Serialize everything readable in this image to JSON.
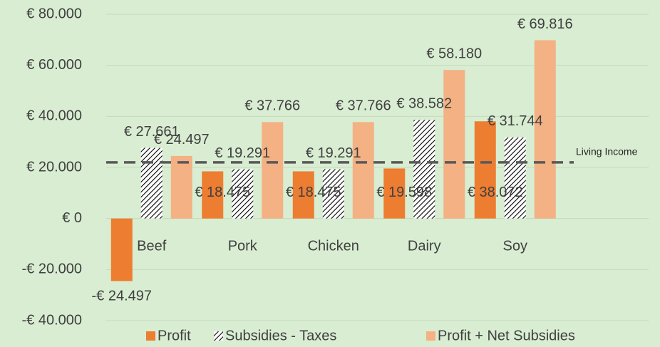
{
  "chart_data": {
    "type": "bar",
    "categories": [
      "Beef",
      "Pork",
      "Chicken",
      "Dairy",
      "Soy"
    ],
    "series": [
      {
        "name": "Profit",
        "color": "#ed7d31",
        "pattern": "solid",
        "values": [
          -24497,
          18475,
          18475,
          19598,
          38072
        ],
        "value_labels": [
          "-€ 24.497",
          "€ 18.475",
          "€ 18.475",
          "€ 19.598",
          "€ 38.072"
        ]
      },
      {
        "name": "Subsidies - Taxes",
        "color": "#000000",
        "pattern": "hatch",
        "values": [
          27661,
          19291,
          19291,
          38582,
          31744
        ],
        "value_labels": [
          "€ 27.661",
          "€ 19.291",
          "€ 19.291",
          "€ 38.582",
          "€ 31.744"
        ]
      },
      {
        "name": "Profit + Net Subsidies",
        "color": "#f4b183",
        "pattern": "solid",
        "values": [
          24497,
          37766,
          37766,
          58180,
          69816
        ],
        "value_labels": [
          "€ 24.497",
          "€ 37.766",
          "€ 37.766",
          "€ 58.180",
          "€ 69.816"
        ]
      }
    ],
    "reference_line": {
      "value": 22000,
      "label": "Living Income",
      "color": "#595959"
    },
    "ylim": [
      -40000,
      80000
    ],
    "yticks": [
      {
        "value": -40000,
        "label": "-€ 40.000"
      },
      {
        "value": -20000,
        "label": "-€ 20.000"
      },
      {
        "value": 0,
        "label": "€ 0"
      },
      {
        "value": 20000,
        "label": "€ 20.000"
      },
      {
        "value": 40000,
        "label": "€ 40.000"
      },
      {
        "value": 60000,
        "label": "€ 60.000"
      },
      {
        "value": 80000,
        "label": "€ 80.000"
      }
    ],
    "grid": true,
    "legend": "bottom"
  }
}
